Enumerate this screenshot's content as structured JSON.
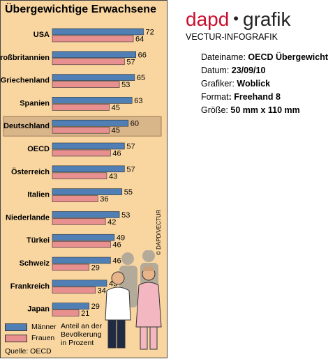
{
  "chart_data": {
    "type": "bar",
    "orientation": "horizontal",
    "title": "Übergewichtige Erwachsene",
    "categories": [
      "USA",
      "Großbritannien",
      "Griechenland",
      "Spanien",
      "Deutschland",
      "OECD",
      "Österreich",
      "Italien",
      "Niederlande",
      "Türkei",
      "Schweiz",
      "Frankreich",
      "Japan"
    ],
    "highlight": "Deutschland",
    "series": [
      {
        "name": "Männer",
        "color": "#4f7fb5",
        "values": [
          72,
          66,
          65,
          63,
          60,
          57,
          57,
          55,
          53,
          49,
          46,
          43,
          29
        ]
      },
      {
        "name": "Frauen",
        "color": "#e89090",
        "values": [
          64,
          57,
          53,
          45,
          45,
          46,
          43,
          36,
          42,
          46,
          29,
          34,
          21
        ]
      }
    ],
    "xlim": [
      0,
      80
    ],
    "legend_position": "bottom-left",
    "note": [
      "Anteil an der",
      "Bevölkerung",
      "in Prozent"
    ],
    "source": "Quelle: OECD",
    "copyright": "© DAPD/VECTUR"
  },
  "brand": {
    "name": "dapd",
    "separator": "•",
    "suffix": "grafik",
    "subtitle": "VECTUR-INFOGRAFIK"
  },
  "info": [
    {
      "label": "Dateiname: ",
      "value": "OECD Übergewicht"
    },
    {
      "label": "Datum: ",
      "value": "23/09/10"
    },
    {
      "label": "Grafiker: ",
      "value": "Woblick"
    },
    {
      "label": "Format",
      "value": ": Freehand 8"
    },
    {
      "label": "Größe: ",
      "value": "50 mm x 110 mm"
    }
  ],
  "colors": {
    "panel": "#f9d6a0",
    "highlight": "#d9b58a",
    "brand_red": "#c8102e"
  }
}
